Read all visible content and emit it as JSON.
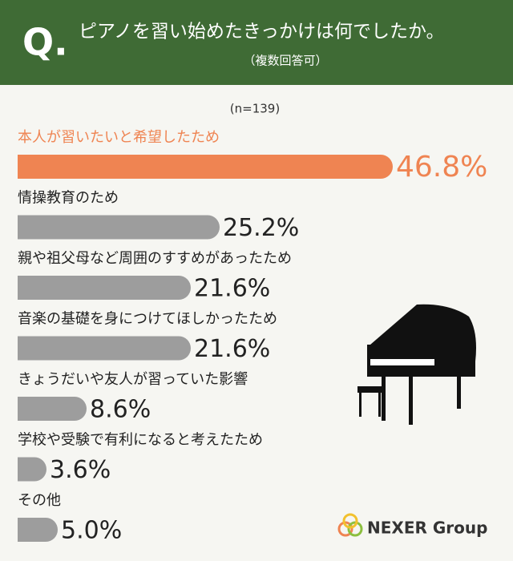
{
  "chart_data": {
    "type": "bar",
    "orientation": "horizontal",
    "title": "ピアノを習い始めたきっかけは何でしたか。",
    "question_mark": "Q.",
    "subtitle": "（複数回答可）",
    "sample_size": "(n=139)",
    "categories": [
      "本人が習いたいと希望したため",
      "情操教育のため",
      "親や祖父母など周囲のすすめがあったため",
      "音楽の基礎を身につけてほしかったため",
      "きょうだいや友人が習っていた影響",
      "学校や受験で有利になると考えたため",
      "その他"
    ],
    "values": [
      46.8,
      25.2,
      21.6,
      21.6,
      8.6,
      3.6,
      5.0
    ],
    "value_labels": [
      "46.8%",
      "25.2%",
      "21.6%",
      "21.6%",
      "8.6%",
      "3.6%",
      "5.0%"
    ],
    "color": "#9d9d9d",
    "highlight_color": "#ef8452",
    "highlight_index": 0
  },
  "brand": "NEXER Group"
}
